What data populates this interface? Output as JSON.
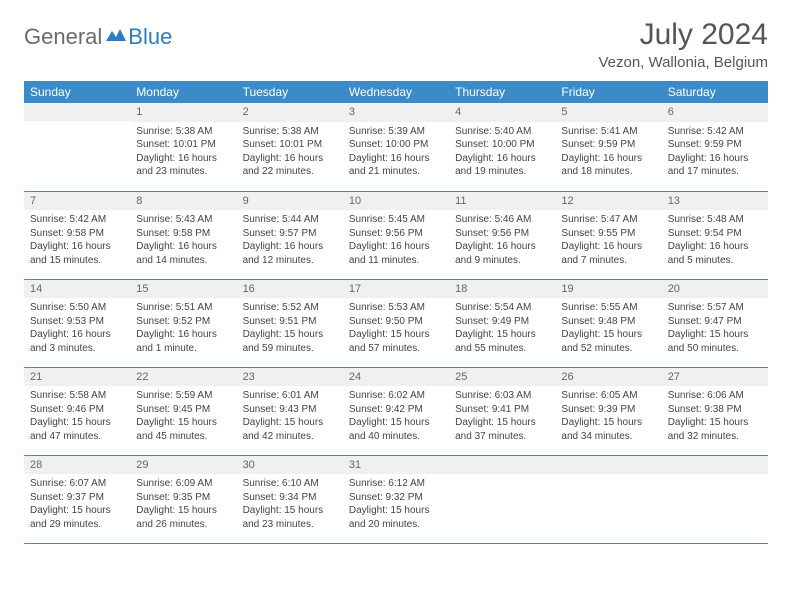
{
  "logo": {
    "general": "General",
    "blue": "Blue"
  },
  "title": "July 2024",
  "location": "Vezon, Wallonia, Belgium",
  "colors": {
    "header_bg": "#3b8bc8",
    "header_text": "#ffffff",
    "daynum_bg": "#eef0f2",
    "border": "#3b8bc8",
    "text": "#444444",
    "title_color": "#555555",
    "logo_gray": "#6b6b6b",
    "logo_blue": "#2d7bc0"
  },
  "dayHeaders": [
    "Sunday",
    "Monday",
    "Tuesday",
    "Wednesday",
    "Thursday",
    "Friday",
    "Saturday"
  ],
  "weeks": [
    [
      null,
      {
        "n": "1",
        "sr": "5:38 AM",
        "ss": "10:01 PM",
        "dl": "16 hours and 23 minutes."
      },
      {
        "n": "2",
        "sr": "5:38 AM",
        "ss": "10:01 PM",
        "dl": "16 hours and 22 minutes."
      },
      {
        "n": "3",
        "sr": "5:39 AM",
        "ss": "10:00 PM",
        "dl": "16 hours and 21 minutes."
      },
      {
        "n": "4",
        "sr": "5:40 AM",
        "ss": "10:00 PM",
        "dl": "16 hours and 19 minutes."
      },
      {
        "n": "5",
        "sr": "5:41 AM",
        "ss": "9:59 PM",
        "dl": "16 hours and 18 minutes."
      },
      {
        "n": "6",
        "sr": "5:42 AM",
        "ss": "9:59 PM",
        "dl": "16 hours and 17 minutes."
      }
    ],
    [
      {
        "n": "7",
        "sr": "5:42 AM",
        "ss": "9:58 PM",
        "dl": "16 hours and 15 minutes."
      },
      {
        "n": "8",
        "sr": "5:43 AM",
        "ss": "9:58 PM",
        "dl": "16 hours and 14 minutes."
      },
      {
        "n": "9",
        "sr": "5:44 AM",
        "ss": "9:57 PM",
        "dl": "16 hours and 12 minutes."
      },
      {
        "n": "10",
        "sr": "5:45 AM",
        "ss": "9:56 PM",
        "dl": "16 hours and 11 minutes."
      },
      {
        "n": "11",
        "sr": "5:46 AM",
        "ss": "9:56 PM",
        "dl": "16 hours and 9 minutes."
      },
      {
        "n": "12",
        "sr": "5:47 AM",
        "ss": "9:55 PM",
        "dl": "16 hours and 7 minutes."
      },
      {
        "n": "13",
        "sr": "5:48 AM",
        "ss": "9:54 PM",
        "dl": "16 hours and 5 minutes."
      }
    ],
    [
      {
        "n": "14",
        "sr": "5:50 AM",
        "ss": "9:53 PM",
        "dl": "16 hours and 3 minutes."
      },
      {
        "n": "15",
        "sr": "5:51 AM",
        "ss": "9:52 PM",
        "dl": "16 hours and 1 minute."
      },
      {
        "n": "16",
        "sr": "5:52 AM",
        "ss": "9:51 PM",
        "dl": "15 hours and 59 minutes."
      },
      {
        "n": "17",
        "sr": "5:53 AM",
        "ss": "9:50 PM",
        "dl": "15 hours and 57 minutes."
      },
      {
        "n": "18",
        "sr": "5:54 AM",
        "ss": "9:49 PM",
        "dl": "15 hours and 55 minutes."
      },
      {
        "n": "19",
        "sr": "5:55 AM",
        "ss": "9:48 PM",
        "dl": "15 hours and 52 minutes."
      },
      {
        "n": "20",
        "sr": "5:57 AM",
        "ss": "9:47 PM",
        "dl": "15 hours and 50 minutes."
      }
    ],
    [
      {
        "n": "21",
        "sr": "5:58 AM",
        "ss": "9:46 PM",
        "dl": "15 hours and 47 minutes."
      },
      {
        "n": "22",
        "sr": "5:59 AM",
        "ss": "9:45 PM",
        "dl": "15 hours and 45 minutes."
      },
      {
        "n": "23",
        "sr": "6:01 AM",
        "ss": "9:43 PM",
        "dl": "15 hours and 42 minutes."
      },
      {
        "n": "24",
        "sr": "6:02 AM",
        "ss": "9:42 PM",
        "dl": "15 hours and 40 minutes."
      },
      {
        "n": "25",
        "sr": "6:03 AM",
        "ss": "9:41 PM",
        "dl": "15 hours and 37 minutes."
      },
      {
        "n": "26",
        "sr": "6:05 AM",
        "ss": "9:39 PM",
        "dl": "15 hours and 34 minutes."
      },
      {
        "n": "27",
        "sr": "6:06 AM",
        "ss": "9:38 PM",
        "dl": "15 hours and 32 minutes."
      }
    ],
    [
      {
        "n": "28",
        "sr": "6:07 AM",
        "ss": "9:37 PM",
        "dl": "15 hours and 29 minutes."
      },
      {
        "n": "29",
        "sr": "6:09 AM",
        "ss": "9:35 PM",
        "dl": "15 hours and 26 minutes."
      },
      {
        "n": "30",
        "sr": "6:10 AM",
        "ss": "9:34 PM",
        "dl": "15 hours and 23 minutes."
      },
      {
        "n": "31",
        "sr": "6:12 AM",
        "ss": "9:32 PM",
        "dl": "15 hours and 20 minutes."
      },
      null,
      null,
      null
    ]
  ],
  "labels": {
    "sunrise": "Sunrise: ",
    "sunset": "Sunset: ",
    "daylight": "Daylight: "
  }
}
